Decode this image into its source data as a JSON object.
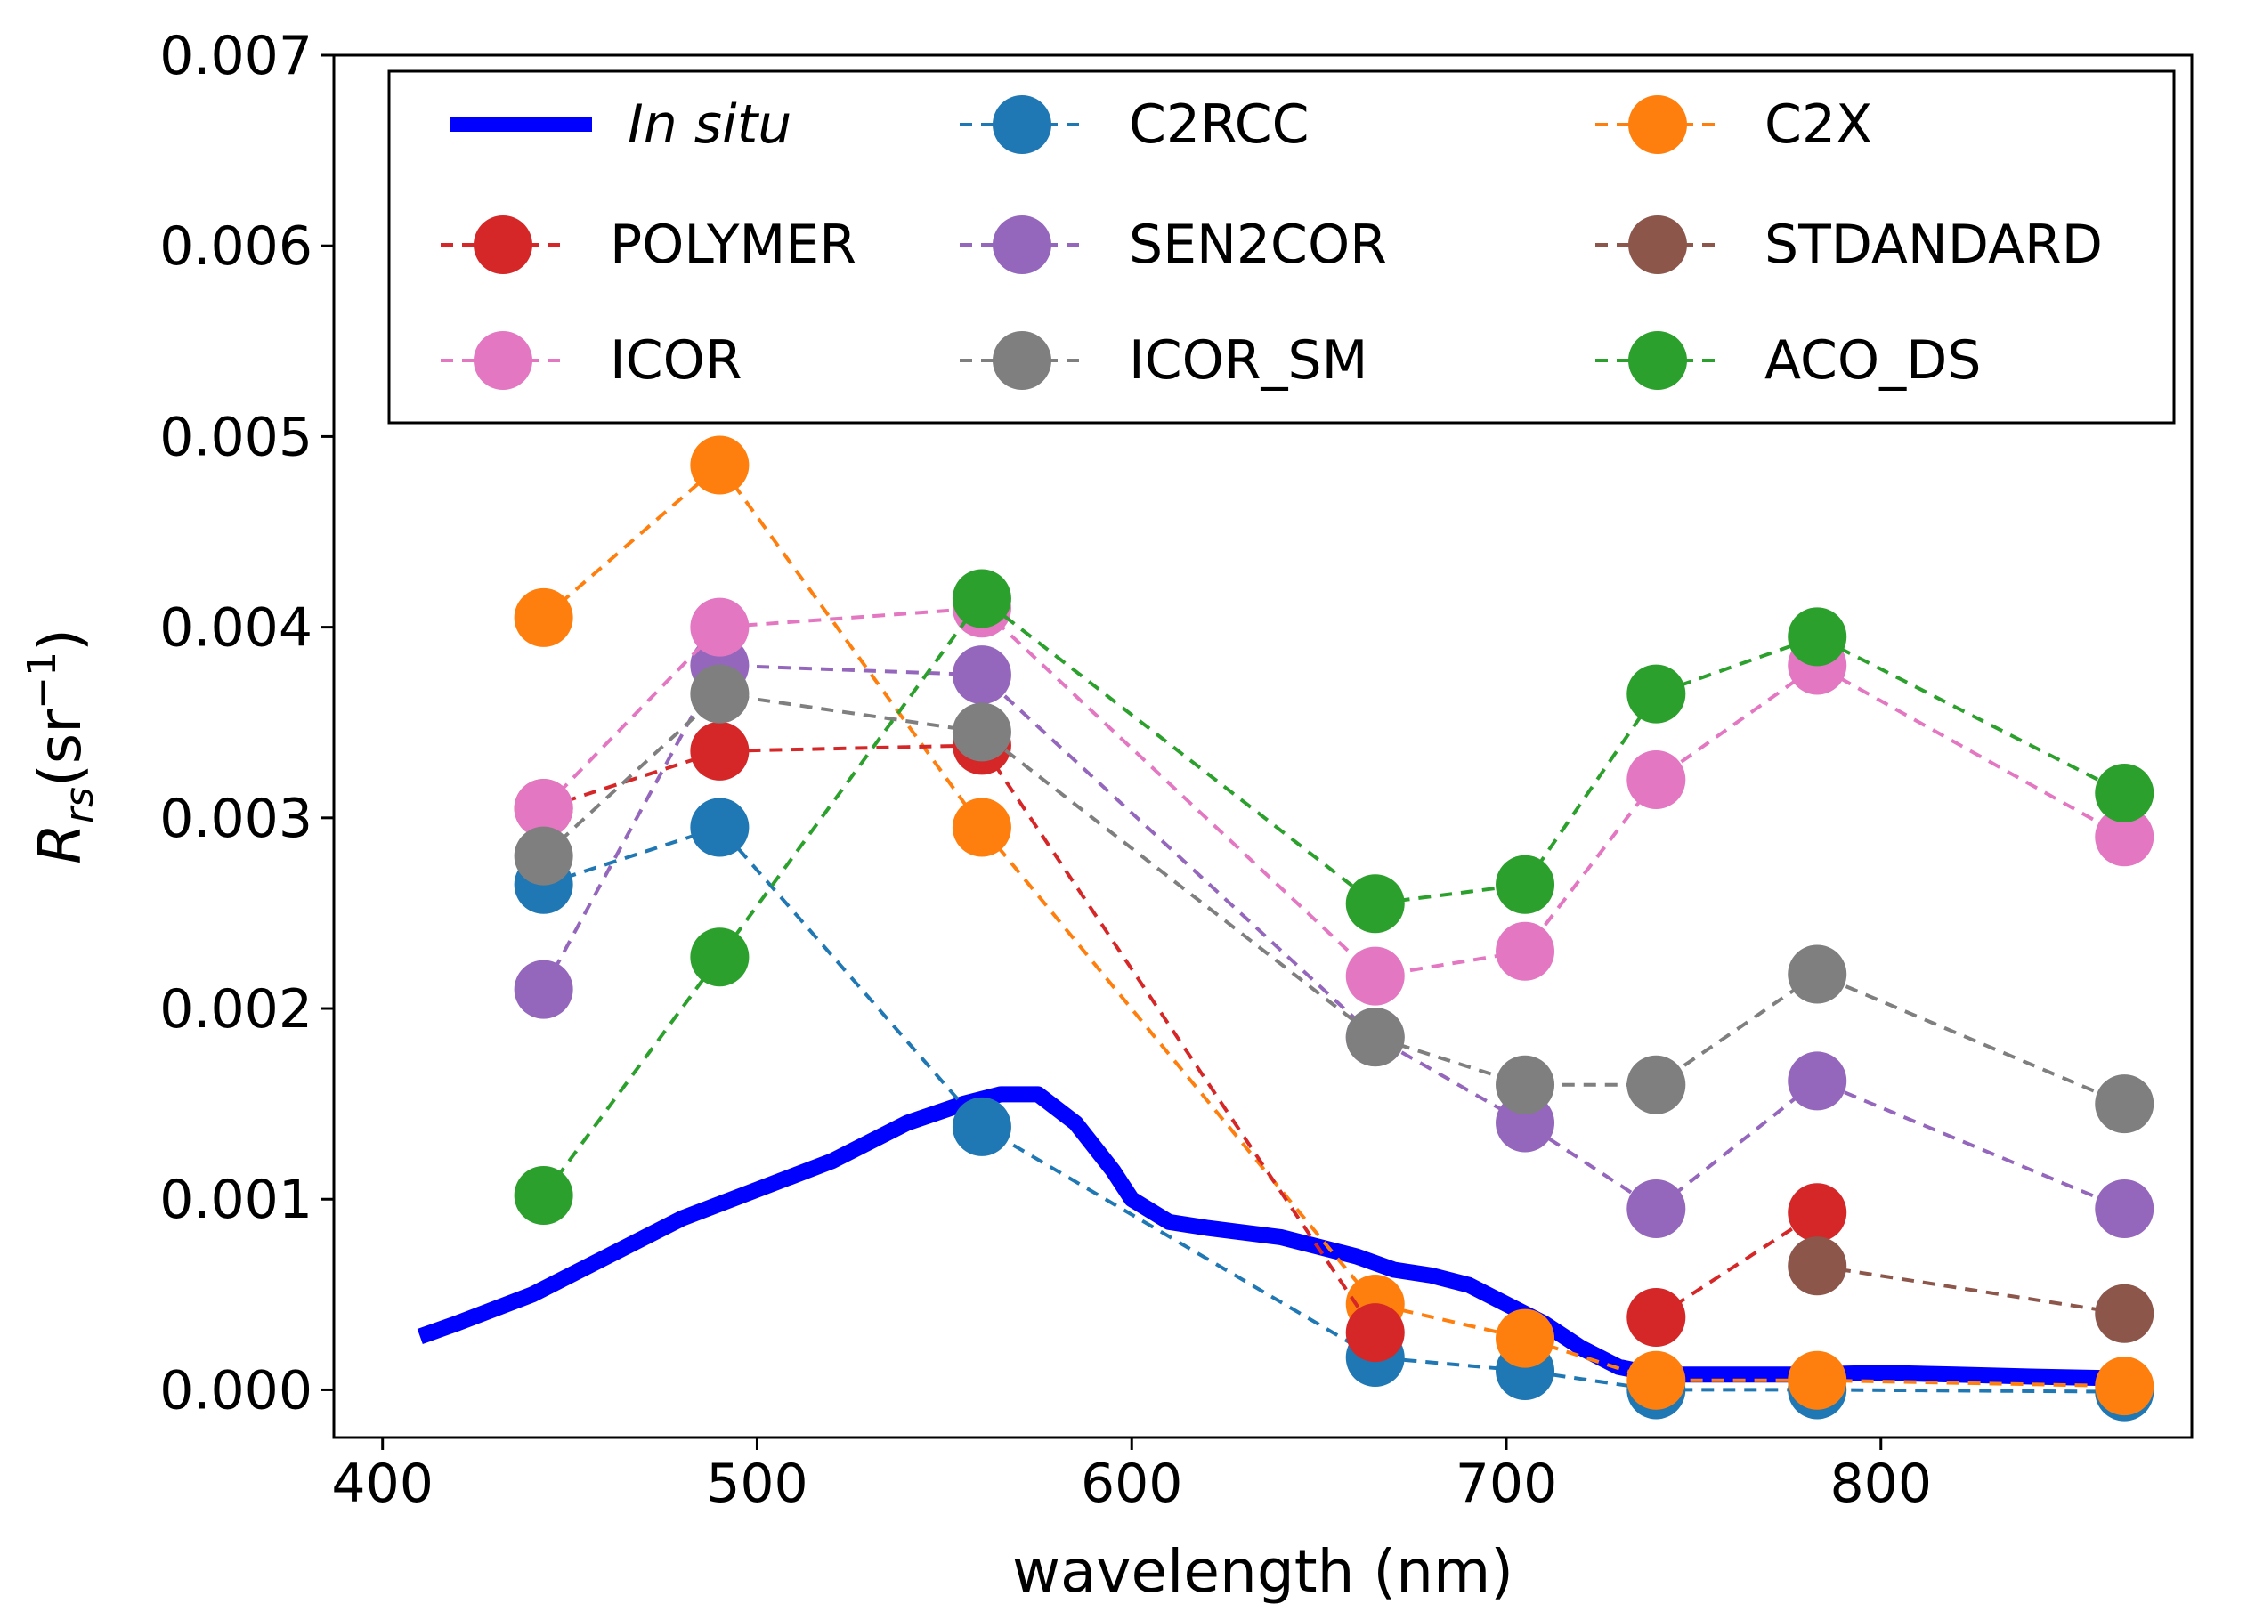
{
  "chart_data": {
    "type": "line",
    "xlabel": "wavelength (nm)",
    "ylabel": {
      "base": "R",
      "subscript": "rs",
      "unit": "(sr",
      "exponent": "−1",
      "close": ")"
    },
    "xlim": [
      387,
      883
    ],
    "ylim": [
      -0.00025,
      0.007
    ],
    "xticks": [
      400,
      500,
      600,
      700,
      800
    ],
    "yticks": [
      0.0,
      0.001,
      0.002,
      0.003,
      0.004,
      0.005,
      0.006,
      0.007
    ],
    "ytick_labels": [
      "0.000",
      "0.001",
      "0.002",
      "0.003",
      "0.004",
      "0.005",
      "0.006",
      "0.007"
    ],
    "legend_position": "top",
    "x": [
      443,
      490,
      560,
      665,
      705,
      740,
      783,
      865
    ],
    "in_situ": {
      "name": "In situ",
      "color": "#0000ff",
      "x": [
        410,
        420,
        440,
        460,
        480,
        500,
        520,
        540,
        555,
        565,
        575,
        585,
        595,
        600,
        610,
        620,
        640,
        660,
        670,
        680,
        690,
        700,
        710,
        720,
        730,
        740,
        760,
        780,
        800,
        820,
        840,
        865
      ],
      "y": [
        0.00028,
        0.00035,
        0.0005,
        0.0007,
        0.0009,
        0.00105,
        0.0012,
        0.0014,
        0.0015,
        0.00155,
        0.00155,
        0.0014,
        0.00115,
        0.001,
        0.00088,
        0.00085,
        0.0008,
        0.0007,
        0.00063,
        0.0006,
        0.00055,
        0.00045,
        0.00035,
        0.00022,
        0.00012,
        8e-05,
        8e-05,
        8e-05,
        9e-05,
        8e-05,
        7e-05,
        6e-05
      ]
    },
    "series": [
      {
        "name": "C2RCC",
        "color": "#1f77b4",
        "values": [
          0.00265,
          0.00295,
          0.00138,
          0.00017,
          0.0001,
          0.0,
          0.0,
          -1e-05
        ]
      },
      {
        "name": "C2X",
        "color": "#ff7f0e",
        "values": [
          0.00405,
          0.00485,
          0.00295,
          0.00045,
          0.00027,
          5e-05,
          5e-05,
          2e-05
        ]
      },
      {
        "name": "POLYMER",
        "color": "#d62728",
        "values": [
          0.00305,
          0.00335,
          0.00338,
          0.0003,
          null,
          0.00038,
          0.00093,
          null
        ]
      },
      {
        "name": "SEN2COR",
        "color": "#9467bd",
        "values": [
          0.0021,
          0.0038,
          0.00375,
          0.00185,
          0.0014,
          0.00095,
          0.00162,
          0.00095
        ]
      },
      {
        "name": "STDANDARD",
        "color": "#8c564b",
        "values": [
          null,
          null,
          null,
          null,
          null,
          null,
          0.00065,
          0.0004
        ]
      },
      {
        "name": "ICOR",
        "color": "#e377c2",
        "values": [
          0.00305,
          0.004,
          0.0041,
          0.00217,
          0.0023,
          0.0032,
          0.0038,
          0.0029
        ]
      },
      {
        "name": "ICOR_SM",
        "color": "#7f7f7f",
        "values": [
          0.0028,
          0.00365,
          0.00345,
          0.00185,
          0.0016,
          0.0016,
          0.00218,
          0.0015
        ]
      },
      {
        "name": "ACO_DS",
        "color": "#2ca02c",
        "values": [
          0.00102,
          0.00227,
          0.00415,
          0.00255,
          0.00265,
          0.00365,
          0.00395,
          0.00313
        ]
      }
    ],
    "draw_order": [
      "C2RCC",
      "C2X",
      "POLYMER",
      "SEN2COR",
      "STDANDARD",
      "ICOR",
      "ICOR_SM",
      "ACO_DS"
    ],
    "legend_layout": [
      [
        "In situ",
        "C2RCC",
        "C2X"
      ],
      [
        "POLYMER",
        "SEN2COR",
        "STDANDARD"
      ],
      [
        "ICOR",
        "ICOR_SM",
        "ACO_DS"
      ]
    ]
  }
}
